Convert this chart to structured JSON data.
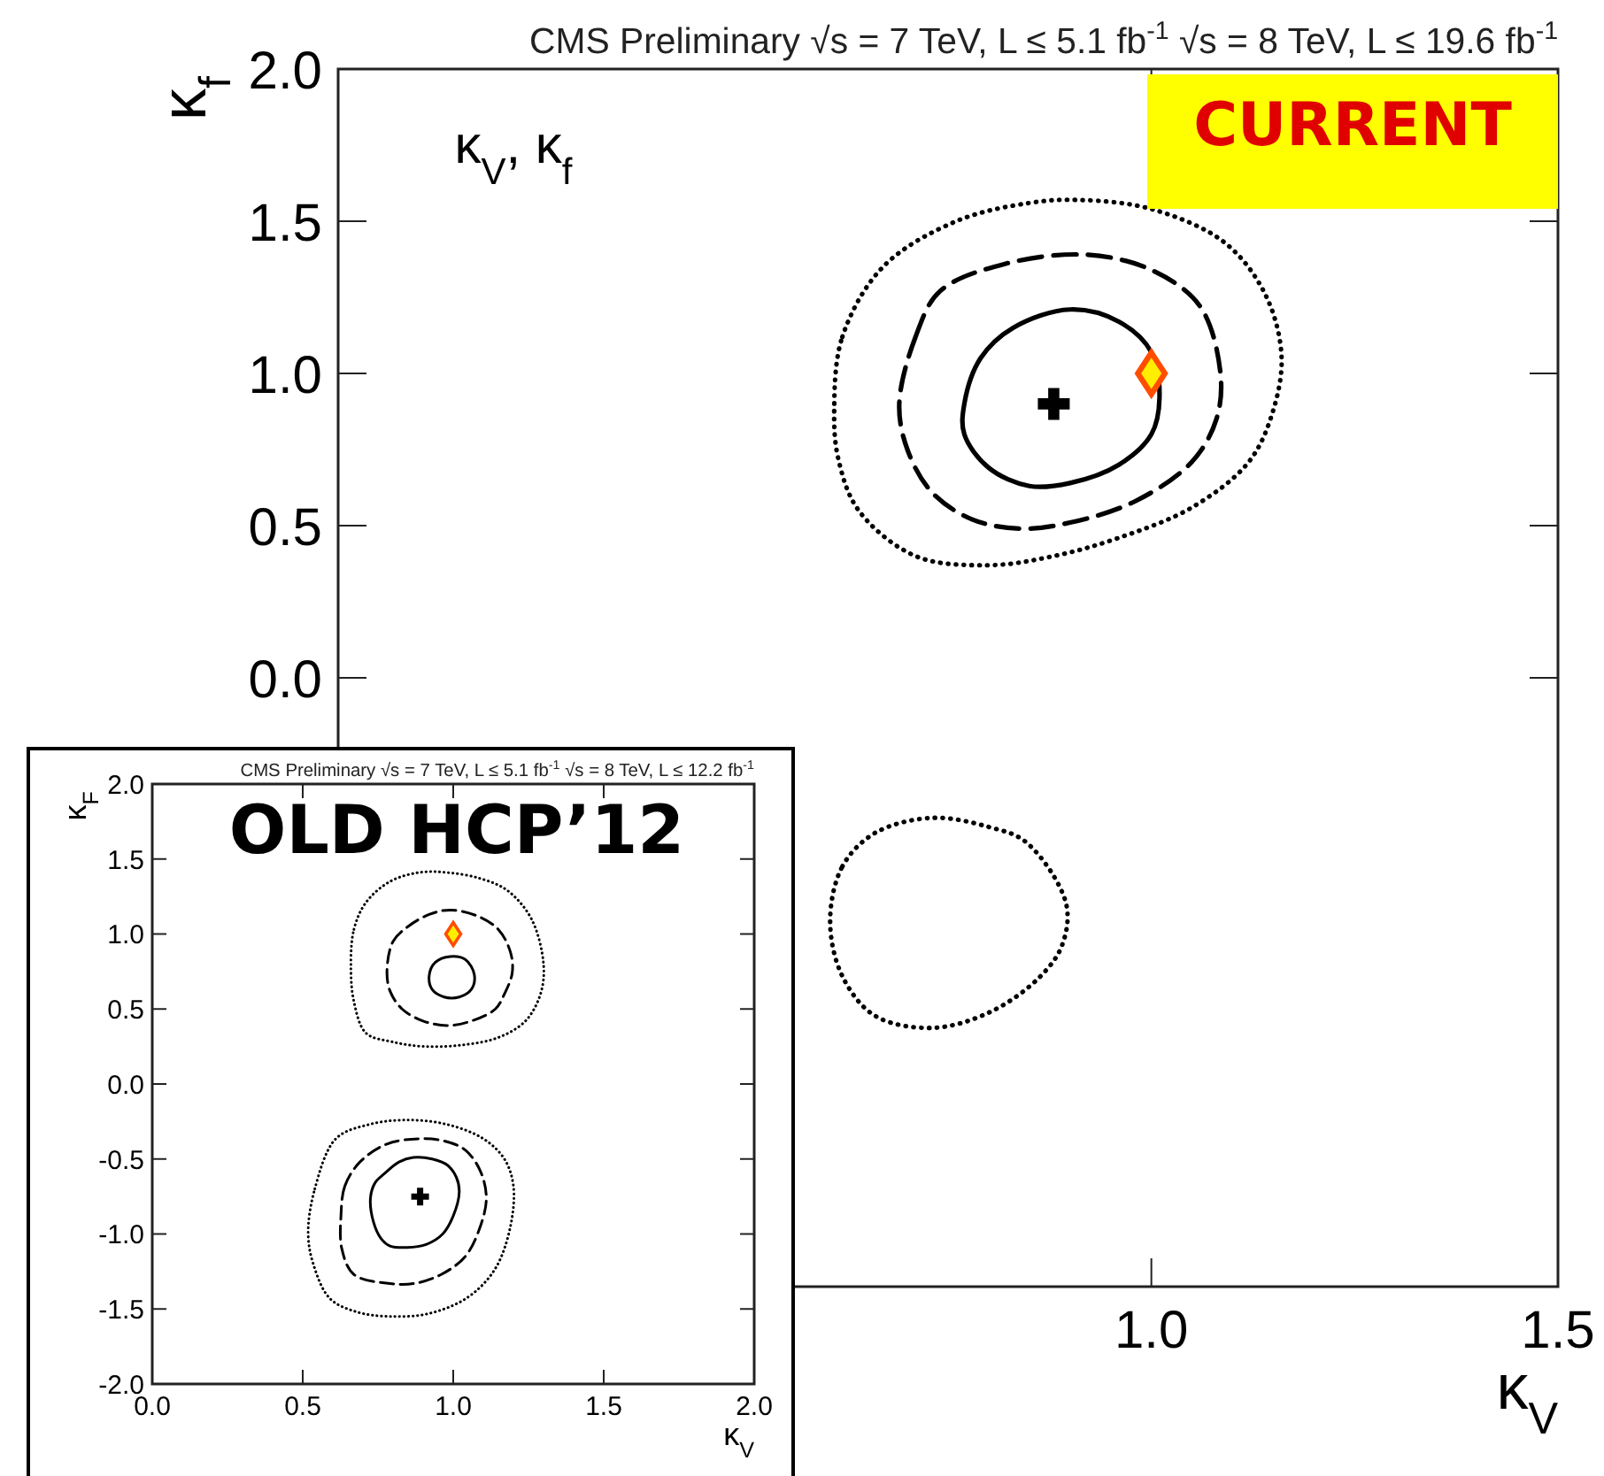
{
  "chart_data": [
    {
      "type": "scatter",
      "title": "CMS Preliminary  √s = 7 TeV, L ≤ 5.1 fb$^{-1}$  √s = 8 TeV, L ≤ 19.6 fb$^{-1}$",
      "xlabel": "κ$_{V}$",
      "ylabel": "κ$_{f}$",
      "annotations": [
        "κ$_{V}$, κ$_{f}$",
        "CURRENT"
      ],
      "xlim": [
        0,
        1.5
      ],
      "ylim": [
        -2,
        2
      ],
      "xticks": [
        {
          "value": 1,
          "label": "1.0"
        },
        {
          "value": 1.5,
          "label": "1.5"
        }
      ],
      "yticks": [
        {
          "value": 0,
          "label": "0.0"
        },
        0.5,
        {
          "value": 1,
          "label": "1.0"
        },
        1.5,
        {
          "value": 2,
          "label": "2.0"
        }
      ],
      "series": [
        {
          "type": "scatter",
          "marker": "cross",
          "color": "#000000",
          "x": [
            0.88
          ],
          "values": [
            0.9
          ]
        },
        {
          "type": "scatter",
          "marker": "diamond",
          "color": "#ffee00",
          "x": [
            1.0
          ],
          "values": [
            1.0
          ]
        }
      ]
    },
    {
      "type": "scatter",
      "title": "CMS Preliminary  √s = 7 TeV, L ≤ 5.1 fb$^{-1}$  √s = 8 TeV, L ≤ 12.2 fb$^{-1}$",
      "xlabel": "κ$_{V}$",
      "ylabel": "κ$_{F}$",
      "annotations": [
        "OLD HCP’12"
      ],
      "xlim": [
        0,
        2
      ],
      "ylim": [
        -2,
        2
      ],
      "xticks": [
        {
          "value": 0,
          "label": "0.0"
        },
        0.5,
        {
          "value": 1,
          "label": "1.0"
        },
        1.5,
        {
          "value": 2,
          "label": "2.0"
        }
      ],
      "yticks": [
        {
          "value": -2,
          "label": "-2.0"
        },
        -1.5,
        {
          "value": -1,
          "label": "-1.0"
        },
        -0.5,
        {
          "value": 0,
          "label": "0.0"
        },
        0.5,
        {
          "value": 1,
          "label": "1.0"
        },
        1.5,
        {
          "value": 2,
          "label": "2.0"
        }
      ],
      "series": [
        {
          "type": "scatter",
          "marker": "cross",
          "color": "#000000",
          "x": [
            0.89
          ],
          "values": [
            -0.75
          ]
        },
        {
          "type": "scatter",
          "marker": "diamond",
          "color": "#ffee00",
          "x": [
            1.0
          ],
          "values": [
            1.0
          ]
        }
      ]
    }
  ]
}
